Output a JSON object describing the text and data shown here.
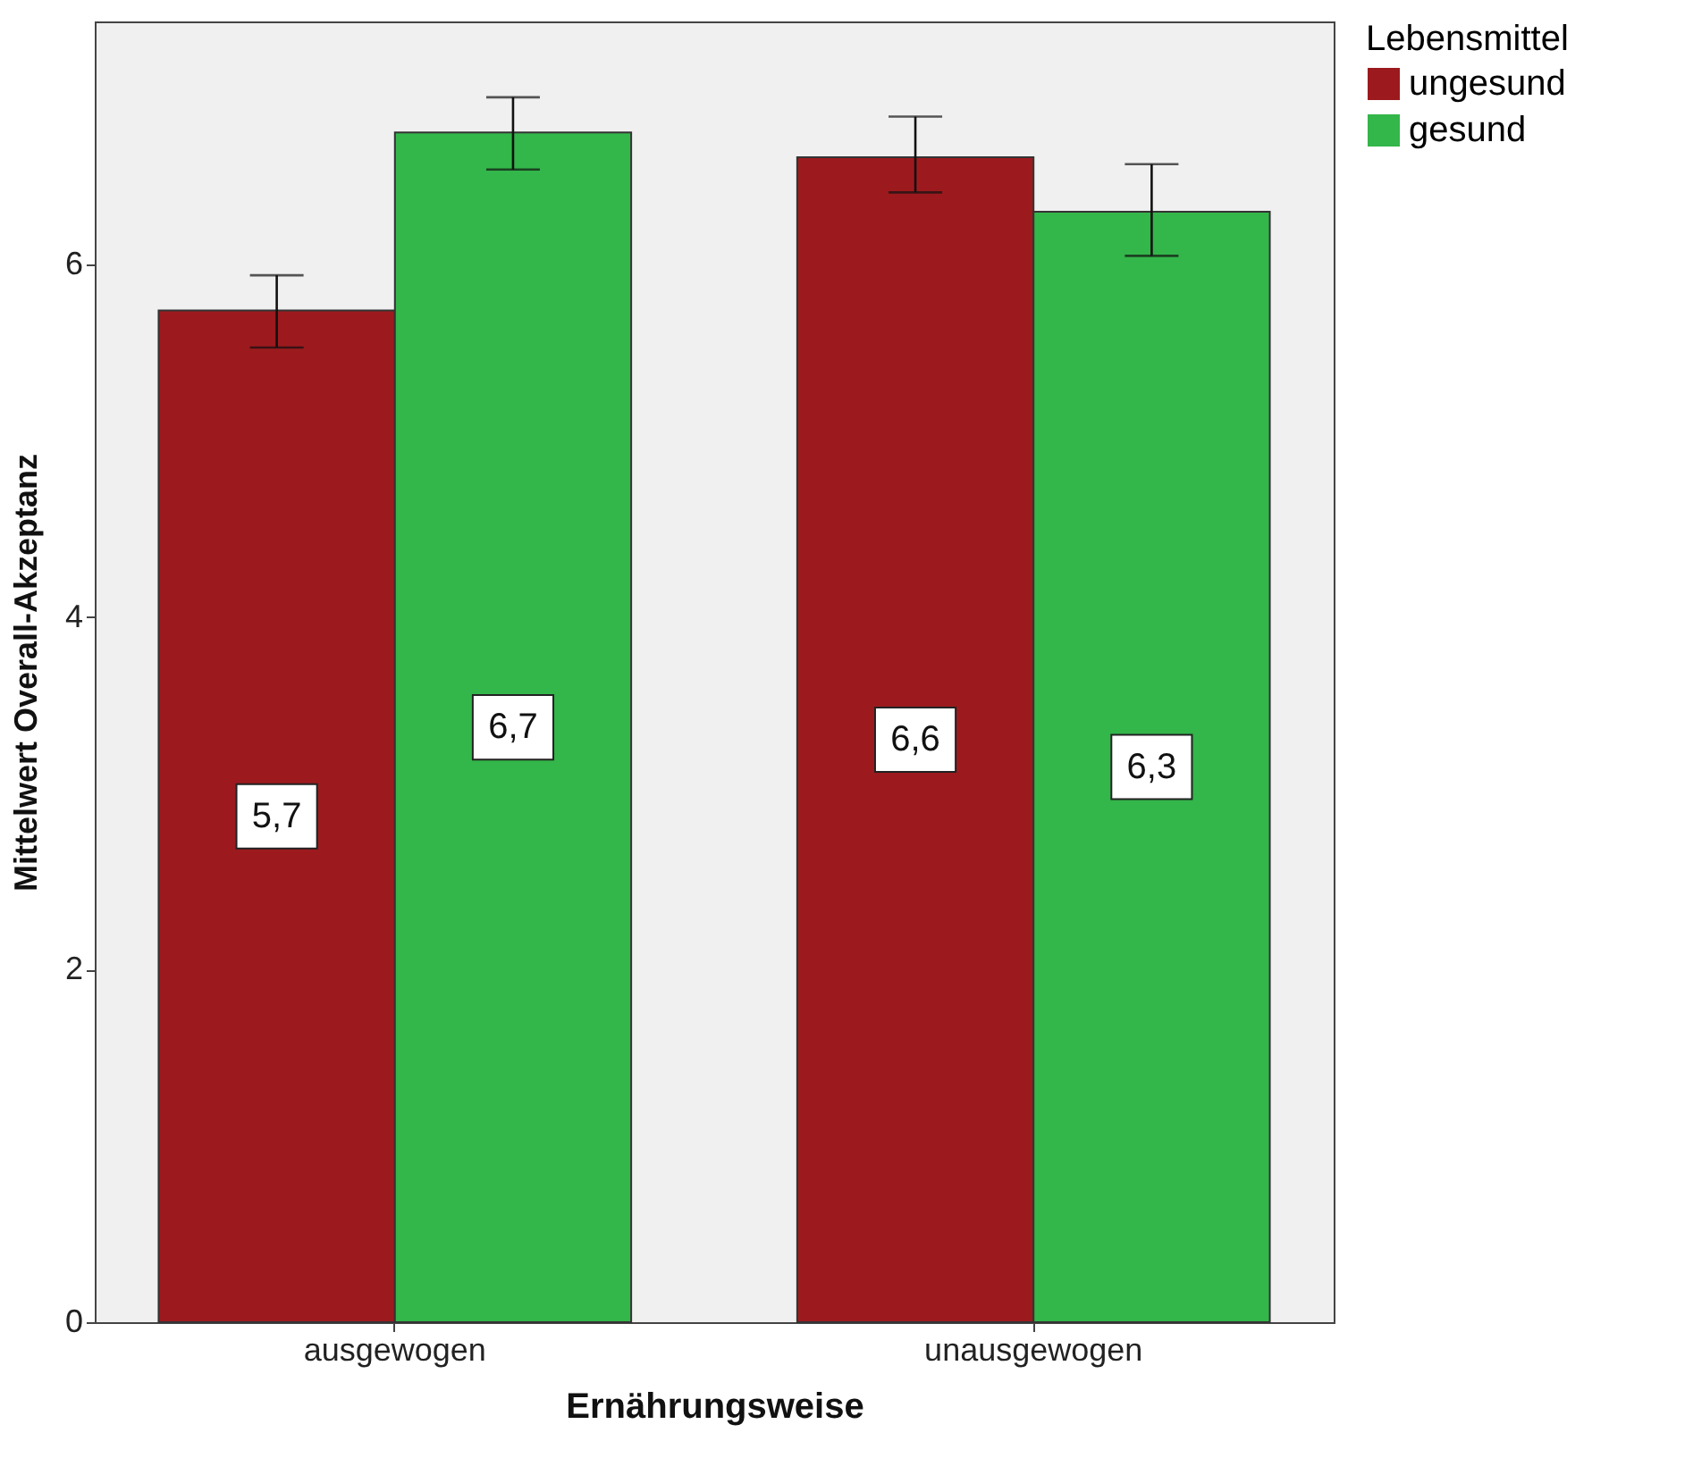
{
  "chart_data": {
    "type": "bar",
    "xlabel": "Ernährungsweise",
    "ylabel": "Mittelwert Overall-Akzeptanz",
    "legend_title": "Lebensmittel",
    "categories": [
      "ausgewogen",
      "unausgewogen"
    ],
    "series": [
      {
        "name": "ungesund",
        "color": "#9c1a1e",
        "values": [
          5.74,
          6.61
        ],
        "errors": [
          [
            5.53,
            5.94
          ],
          [
            6.41,
            6.84
          ]
        ],
        "value_labels": [
          "5,7",
          "6,6"
        ]
      },
      {
        "name": "gesund",
        "color": "#33b64a",
        "values": [
          6.75,
          6.3
        ],
        "errors": [
          [
            6.54,
            6.95
          ],
          [
            6.05,
            6.57
          ]
        ],
        "value_labels": [
          "6,7",
          "6,3"
        ]
      }
    ],
    "ylim": [
      0,
      7.38
    ],
    "yticks": [
      0,
      2,
      4,
      6
    ],
    "grid": false,
    "legend": "top right"
  }
}
